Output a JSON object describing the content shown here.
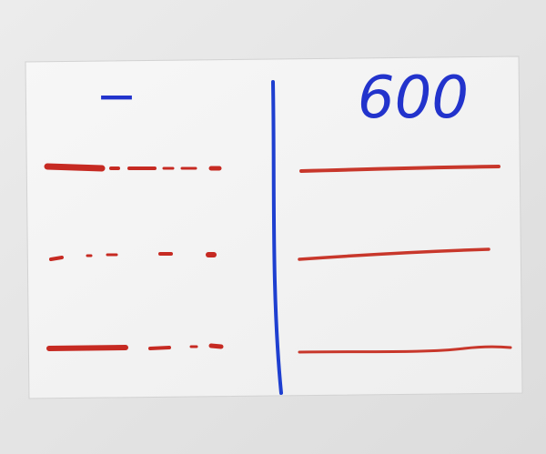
{
  "labels": {
    "left": "−",
    "right": "600"
  }
}
